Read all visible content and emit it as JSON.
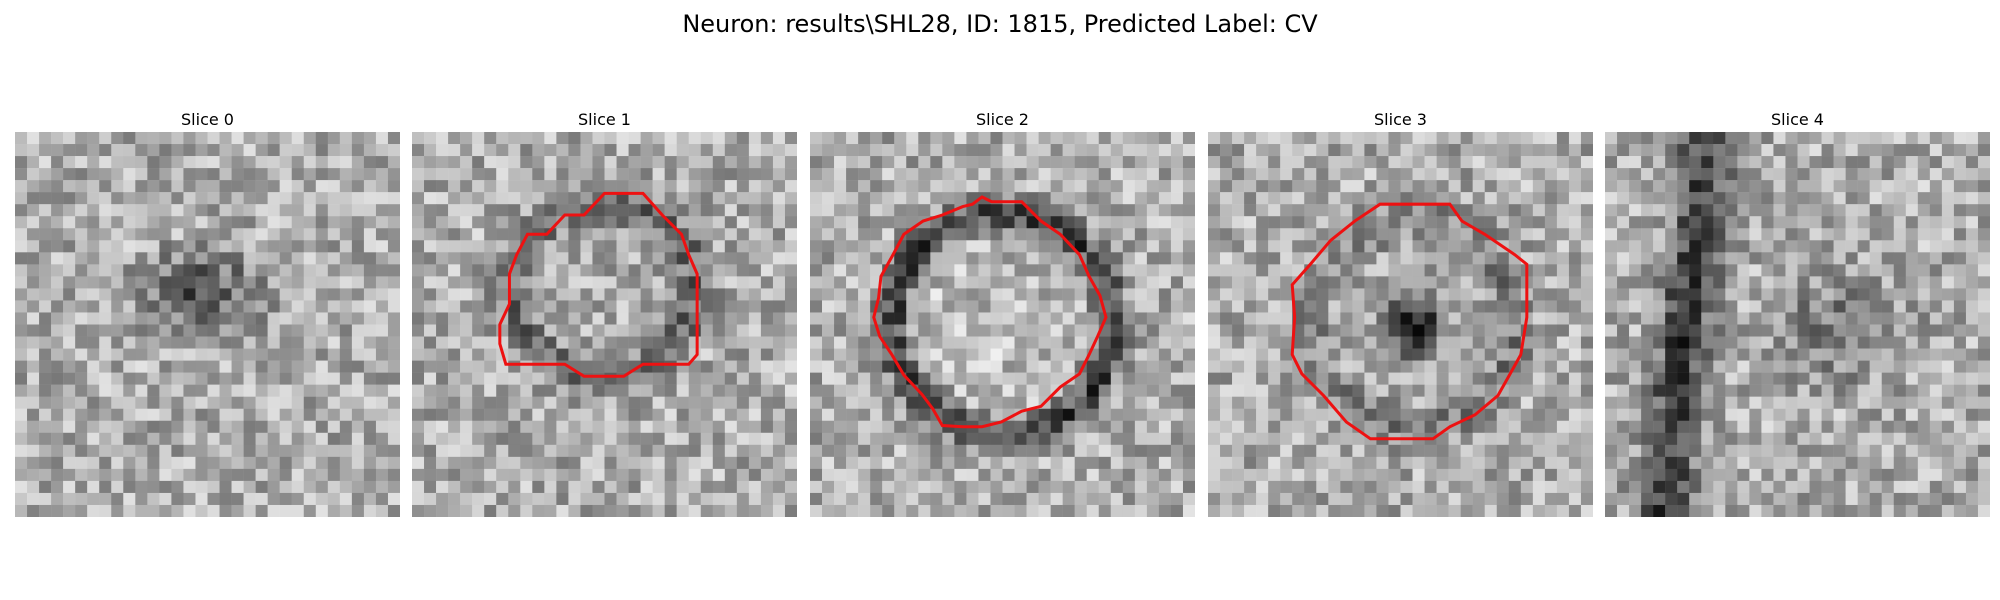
{
  "figure": {
    "title": "Neuron: results\\SHL28, ID: 1815, Predicted Label: CV",
    "contour_color": "#ee1111"
  },
  "slices": [
    {
      "label": "Slice 0",
      "has_contour": false
    },
    {
      "label": "Slice 1",
      "has_contour": true
    },
    {
      "label": "Slice 2",
      "has_contour": true
    },
    {
      "label": "Slice 3",
      "has_contour": true
    },
    {
      "label": "Slice 4",
      "has_contour": false
    }
  ]
}
